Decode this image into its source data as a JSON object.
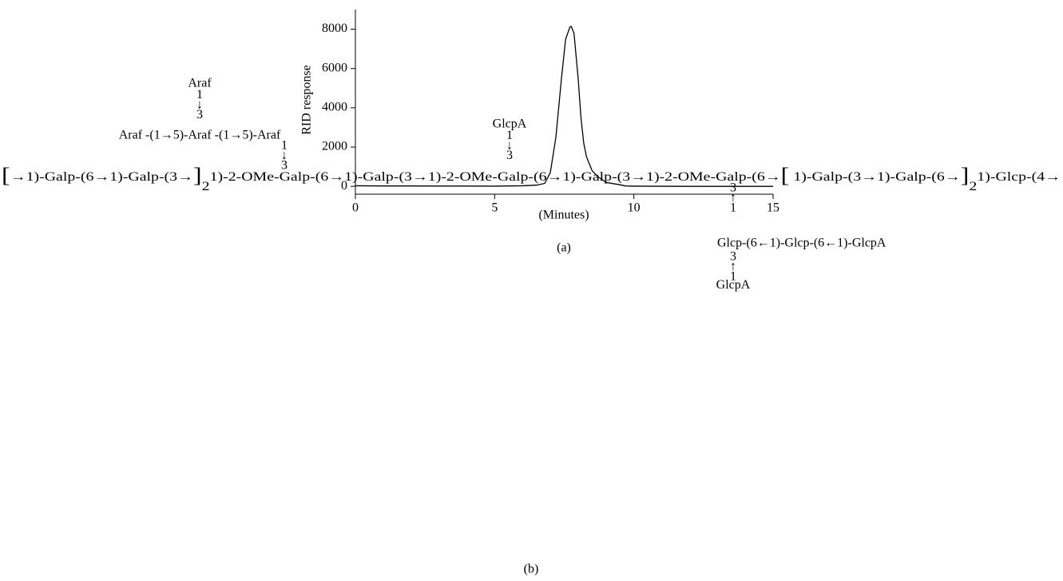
{
  "chart_data": {
    "type": "line",
    "x_label": "(Minutes)",
    "y_label": "RID response",
    "caption": "(a)",
    "x": [
      0,
      1,
      2,
      3,
      4,
      5,
      5.5,
      6,
      6.5,
      6.8,
      7,
      7.2,
      7.4,
      7.55,
      7.7,
      7.75,
      7.85,
      8,
      8.1,
      8.2,
      8.3,
      8.5,
      8.7,
      9,
      9.5,
      9.7,
      10,
      12,
      15
    ],
    "series": [
      {
        "color": "#000000",
        "values": [
          30,
          20,
          20,
          15,
          15,
          10,
          20,
          30,
          60,
          150,
          700,
          2500,
          5500,
          7500,
          8100,
          8150,
          7800,
          5500,
          3500,
          2200,
          1500,
          800,
          500,
          200,
          80,
          20,
          10,
          0,
          0
        ]
      }
    ],
    "xlim": [
      0,
      15
    ],
    "ylim": [
      -400,
      9000
    ],
    "xticks": [
      0,
      5,
      10,
      15
    ],
    "yticks": [
      0,
      2000,
      4000,
      6000,
      8000
    ]
  },
  "diagram": {
    "caption": "(b)",
    "main_chain": [
      "[",
      "→1)-Galp-(6→1)-Galp-(3→",
      "]",
      "2",
      "1)-2-OMe-Galp-(6→1)-Galp-(3→1)-2-OMe-Galp-(6→1)-Galp-(3→1)-2-OMe-Galp-(6→",
      "[",
      " 1)-Galp-(3→1)-Galp-(6→",
      "]",
      "2",
      "1)-Glcp-(4→"
    ],
    "branch_1_top": [
      "Araf",
      "1",
      "↓",
      "3"
    ],
    "branch_1_chain": "Araf -(1→5)-Araf -(1→5)-Araf",
    "branch_1_link": [
      "1",
      "↓",
      "3"
    ],
    "branch_2": [
      "GlcpA",
      "1",
      "↓",
      "3"
    ],
    "branch_3_link": [
      "3",
      "↑",
      "1"
    ],
    "branch_3_chain": "Glcp-(6←1)-Glcp-(6←1)-GlcpA",
    "branch_3_bottom": [
      "3",
      "↑",
      "1",
      "GlcpA"
    ]
  }
}
